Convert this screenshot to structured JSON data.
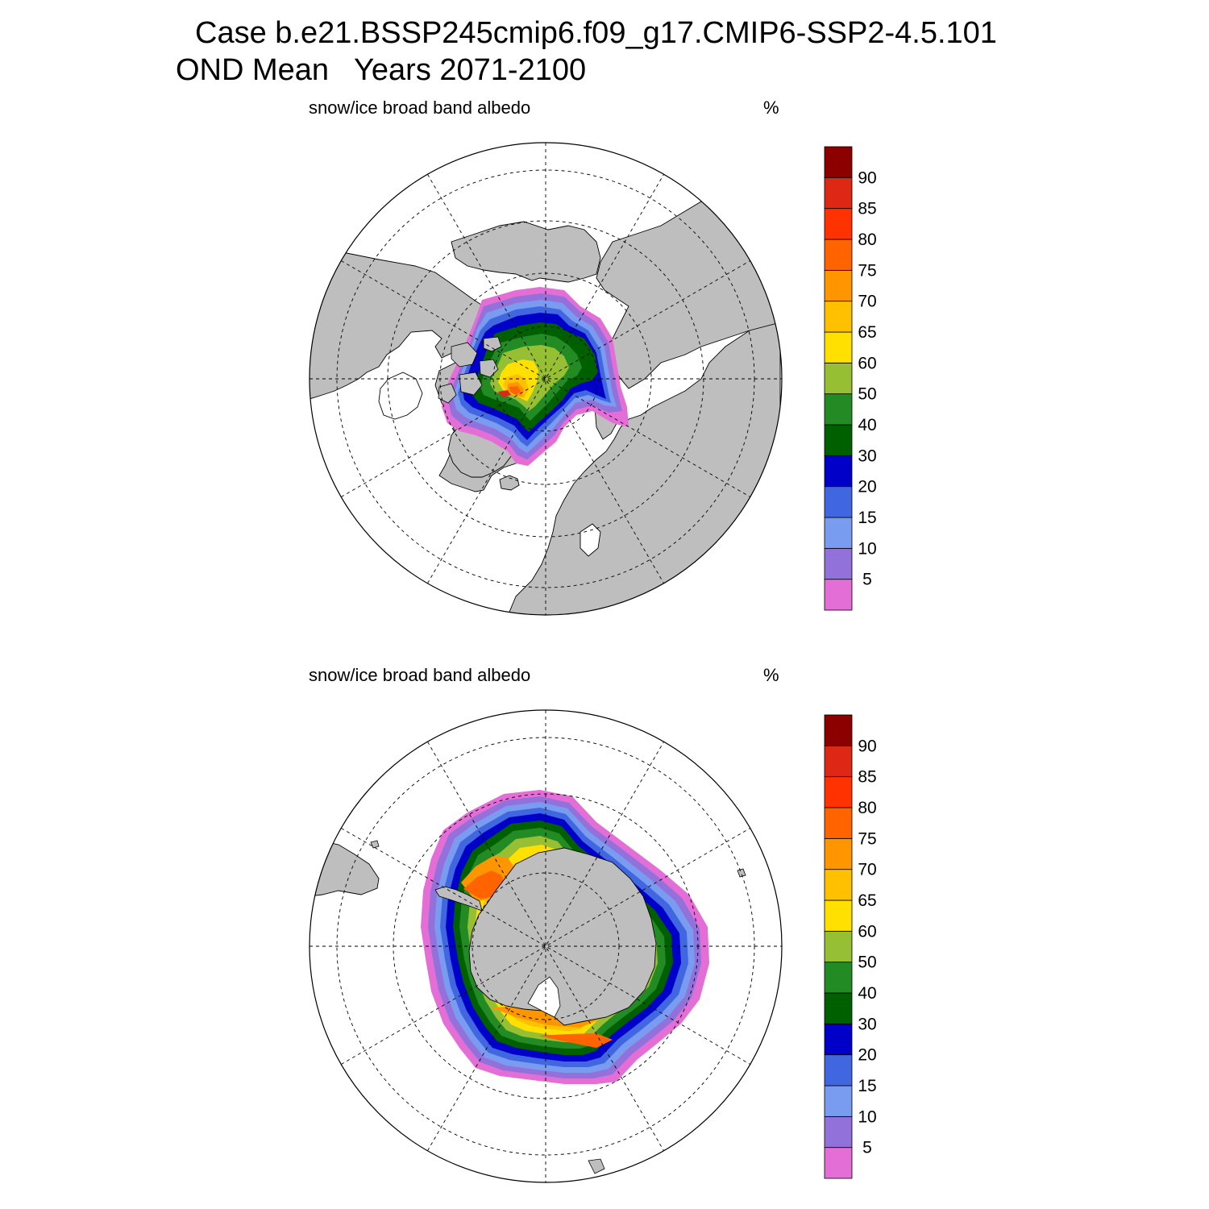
{
  "header": {
    "title_line1": "Case b.e21.BSSP245cmip6.f09_g17.CMIP6-SSP2-4.5.101",
    "title_line2": "OND Mean   Years 2071-2100"
  },
  "colors": {
    "land": "#bebebe",
    "ocean": "#ffffff",
    "scale": [
      "#e36ed6",
      "#9371db",
      "#799bf0",
      "#4167e0",
      "#0000c9",
      "#006000",
      "#238b23",
      "#96bf33",
      "#ffe000",
      "#ffc000",
      "#ff9600",
      "#ff6400",
      "#ff3200",
      "#dc2814",
      "#8c0000"
    ]
  },
  "legend_ticks": [
    "5",
    "10",
    "15",
    "20",
    "30",
    "40",
    "50",
    "60",
    "65",
    "70",
    "75",
    "80",
    "85",
    "90"
  ],
  "panels": [
    {
      "id": "north",
      "field_label": "snow/ice broad band albedo",
      "units_label": "%",
      "hemisphere": "northern"
    },
    {
      "id": "south",
      "field_label": "snow/ice broad band albedo",
      "units_label": "%",
      "hemisphere": "southern"
    }
  ]
}
